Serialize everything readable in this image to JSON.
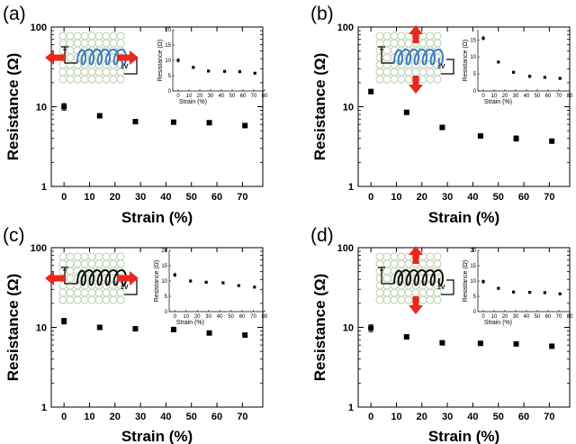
{
  "colors": {
    "marker": "#000000",
    "arrow": "#e8281e",
    "fabric": "#c7d6b9",
    "coil_blue": "#3a7cc2",
    "coil_black": "#111111"
  },
  "chart_data": [
    {
      "panel_label": "(a)",
      "type": "scatter",
      "xlabel": "Strain (%)",
      "ylabel": "Resistance (Ω)",
      "yscale": "log",
      "xlim": [
        -5,
        78
      ],
      "ylim": [
        1,
        100
      ],
      "xticks": [
        0,
        10,
        20,
        30,
        40,
        50,
        60,
        70
      ],
      "yticks": [
        1,
        10,
        100
      ],
      "x": [
        0,
        14,
        28,
        43,
        57,
        71
      ],
      "y": [
        10.0,
        7.7,
        6.5,
        6.4,
        6.3,
        5.8
      ],
      "yerr": [
        1.0,
        0.2,
        0.2,
        0.2,
        0.2,
        0.2
      ],
      "stretch_direction": "horizontal",
      "coil_color": "blue",
      "circuit_label": "±V",
      "inset": {
        "xlabel": "Strain (%)",
        "ylabel": "Resistance (Ω)",
        "xlim": [
          -5,
          80
        ],
        "ylim": [
          0,
          20
        ],
        "xticks": [
          0,
          10,
          20,
          30,
          40,
          50,
          60,
          70,
          80
        ],
        "yticks": [
          0,
          5,
          10,
          15,
          20
        ],
        "x": [
          0,
          14,
          28,
          43,
          57,
          71
        ],
        "y": [
          10.0,
          7.7,
          6.5,
          6.4,
          6.3,
          5.8
        ],
        "yerr": [
          0.8,
          0.2,
          0.2,
          0.2,
          0.2,
          0.2
        ]
      }
    },
    {
      "panel_label": "(b)",
      "type": "scatter",
      "xlabel": "Strain (%)",
      "ylabel": "Resistance (Ω)",
      "yscale": "log",
      "xlim": [
        -5,
        78
      ],
      "ylim": [
        1,
        100
      ],
      "xticks": [
        0,
        10,
        20,
        30,
        40,
        50,
        60,
        70
      ],
      "yticks": [
        1,
        10,
        100
      ],
      "x": [
        0,
        14,
        28,
        43,
        57,
        71
      ],
      "y": [
        15.5,
        8.5,
        5.5,
        4.3,
        4.0,
        3.7
      ],
      "yerr": [
        1.0,
        0.2,
        0.2,
        0.2,
        0.3,
        0.2
      ],
      "stretch_direction": "vertical",
      "coil_color": "blue",
      "circuit_label": "±V",
      "inset": {
        "xlabel": "Strain (%)",
        "ylabel": "Resistance (Ω)",
        "xlim": [
          -5,
          80
        ],
        "ylim": [
          0,
          18
        ],
        "xticks": [
          0,
          10,
          20,
          30,
          40,
          50,
          60,
          70,
          80
        ],
        "yticks": [
          0,
          5,
          10,
          15
        ],
        "x": [
          0,
          14,
          28,
          43,
          57,
          71
        ],
        "y": [
          15.5,
          8.5,
          5.5,
          4.3,
          4.0,
          3.7
        ],
        "yerr": [
          0.8,
          0.2,
          0.2,
          0.2,
          0.2,
          0.2
        ]
      }
    },
    {
      "panel_label": "(c)",
      "type": "scatter",
      "xlabel": "Strain (%)",
      "ylabel": "Resistance (Ω)",
      "yscale": "log",
      "xlim": [
        -5,
        78
      ],
      "ylim": [
        1,
        100
      ],
      "xticks": [
        0,
        10,
        20,
        30,
        40,
        50,
        60,
        70
      ],
      "yticks": [
        1,
        10,
        100
      ],
      "x": [
        0,
        14,
        28,
        43,
        57,
        71
      ],
      "y": [
        12.0,
        10.0,
        9.6,
        9.4,
        8.5,
        8.0
      ],
      "yerr": [
        1.0,
        0.2,
        0.2,
        0.2,
        0.2,
        0.2
      ],
      "stretch_direction": "horizontal",
      "coil_color": "black",
      "circuit_label": "±V",
      "inset": {
        "xlabel": "Strain (%)",
        "ylabel": "Resistance (Ω)",
        "xlim": [
          -5,
          80
        ],
        "ylim": [
          0,
          20
        ],
        "xticks": [
          0,
          10,
          20,
          30,
          40,
          50,
          60,
          70,
          80
        ],
        "yticks": [
          0,
          5,
          10,
          15,
          20
        ],
        "x": [
          0,
          14,
          28,
          43,
          57,
          71
        ],
        "y": [
          12.0,
          10.0,
          9.6,
          9.4,
          8.5,
          8.0
        ],
        "yerr": [
          0.8,
          0.2,
          0.2,
          0.2,
          0.2,
          0.2
        ]
      }
    },
    {
      "panel_label": "(d)",
      "type": "scatter",
      "xlabel": "Strain (%)",
      "ylabel": "Resistance (Ω)",
      "yscale": "log",
      "xlim": [
        -5,
        78
      ],
      "ylim": [
        1,
        100
      ],
      "xticks": [
        0,
        10,
        20,
        30,
        40,
        50,
        60,
        70
      ],
      "yticks": [
        1,
        10,
        100
      ],
      "x": [
        0,
        14,
        28,
        43,
        57,
        71
      ],
      "y": [
        9.8,
        7.6,
        6.4,
        6.3,
        6.2,
        5.8
      ],
      "yerr": [
        1.0,
        0.2,
        0.2,
        0.2,
        0.2,
        0.2
      ],
      "stretch_direction": "vertical",
      "coil_color": "black",
      "circuit_label": "±V",
      "inset": {
        "xlabel": "Strain (%)",
        "ylabel": "Resistance (Ω)",
        "xlim": [
          -5,
          80
        ],
        "ylim": [
          0,
          20
        ],
        "xticks": [
          0,
          10,
          20,
          30,
          40,
          50,
          60,
          70,
          80
        ],
        "yticks": [
          0,
          5,
          10,
          15,
          20
        ],
        "x": [
          0,
          14,
          28,
          43,
          57,
          71
        ],
        "y": [
          9.8,
          7.6,
          6.4,
          6.3,
          6.2,
          5.8
        ],
        "yerr": [
          0.8,
          0.2,
          0.2,
          0.2,
          0.2,
          0.2
        ]
      }
    }
  ]
}
